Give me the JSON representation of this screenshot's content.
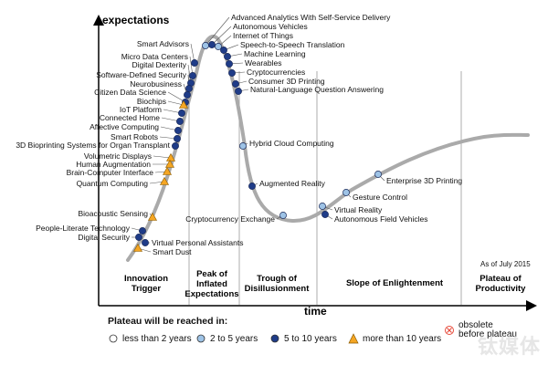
{
  "chart_data": {
    "type": "scatter",
    "title": "",
    "ylabel": "expectations",
    "xlabel": "time",
    "as_of": "As of July 2015",
    "phases": [
      {
        "lines": [
          "Innovation",
          "Trigger"
        ]
      },
      {
        "lines": [
          "Peak of",
          "Inflated",
          "Expectations"
        ]
      },
      {
        "lines": [
          "Trough of",
          "Disillusionment"
        ]
      },
      {
        "lines": [
          "Slope of Enlightenment"
        ]
      },
      {
        "lines": [
          "Plateau of",
          "Productivity"
        ]
      }
    ],
    "legend": {
      "title": "Plateau will be reached in:",
      "items": [
        {
          "label": "less than 2 years",
          "symbol": "circle",
          "color": "#ffffff"
        },
        {
          "label": "2 to 5 years",
          "symbol": "circle",
          "color": "#9ec3e6"
        },
        {
          "label": "5 to 10 years",
          "symbol": "circle",
          "color": "#1f3c88"
        },
        {
          "label": "more than 10 years",
          "symbol": "triangle",
          "color": "#f5a623"
        },
        {
          "label": "obsolete\nbefore plateau",
          "symbol": "x-circle",
          "color": "#e74c3c"
        }
      ]
    },
    "series": [
      {
        "name": "less than 2 years",
        "symbol": "circle",
        "color": "#ffffff",
        "points": []
      },
      {
        "name": "2 to 5 years",
        "symbol": "circle",
        "color": "#9ec3e6",
        "points": [
          "Advanced Analytics With Self-Service Delivery",
          "Internet of Things",
          "Hybrid Cloud Computing",
          "Cryptocurrency Exchange",
          "Virtual Reality",
          "Gesture Control",
          "Enterprise 3D Printing"
        ]
      },
      {
        "name": "5 to 10 years",
        "symbol": "circle",
        "color": "#1f3c88",
        "points": [
          "Autonomous Vehicles",
          "Speech-to-Speech Translation",
          "Machine Learning",
          "Wearables",
          "Cryptocurrencies",
          "Consumer 3D Printing",
          "Natural-Language Question Answering",
          "Smart Advisors",
          "Micro Data Centers",
          "Digital Dexterity",
          "Software-Defined Security",
          "Neurobusiness",
          "Citizen Data Science",
          "IoT Platform",
          "Connected Home",
          "Affective Computing",
          "Smart Robots",
          "3D Bioprinting Systems for Organ Transplant",
          "People-Literate Technology",
          "Digital Security",
          "Virtual Personal Assistants",
          "Augmented Reality",
          "Autonomous Field Vehicles"
        ]
      },
      {
        "name": "more than 10 years",
        "symbol": "triangle",
        "color": "#f5a623",
        "points": [
          "Biochips",
          "Volumetric Displays",
          "Human Augmentation",
          "Brain-Computer Interface",
          "Quantum Computing",
          "Bioacoustic Sensing",
          "Smart Dust"
        ]
      }
    ]
  },
  "watermark": "钛媒体"
}
